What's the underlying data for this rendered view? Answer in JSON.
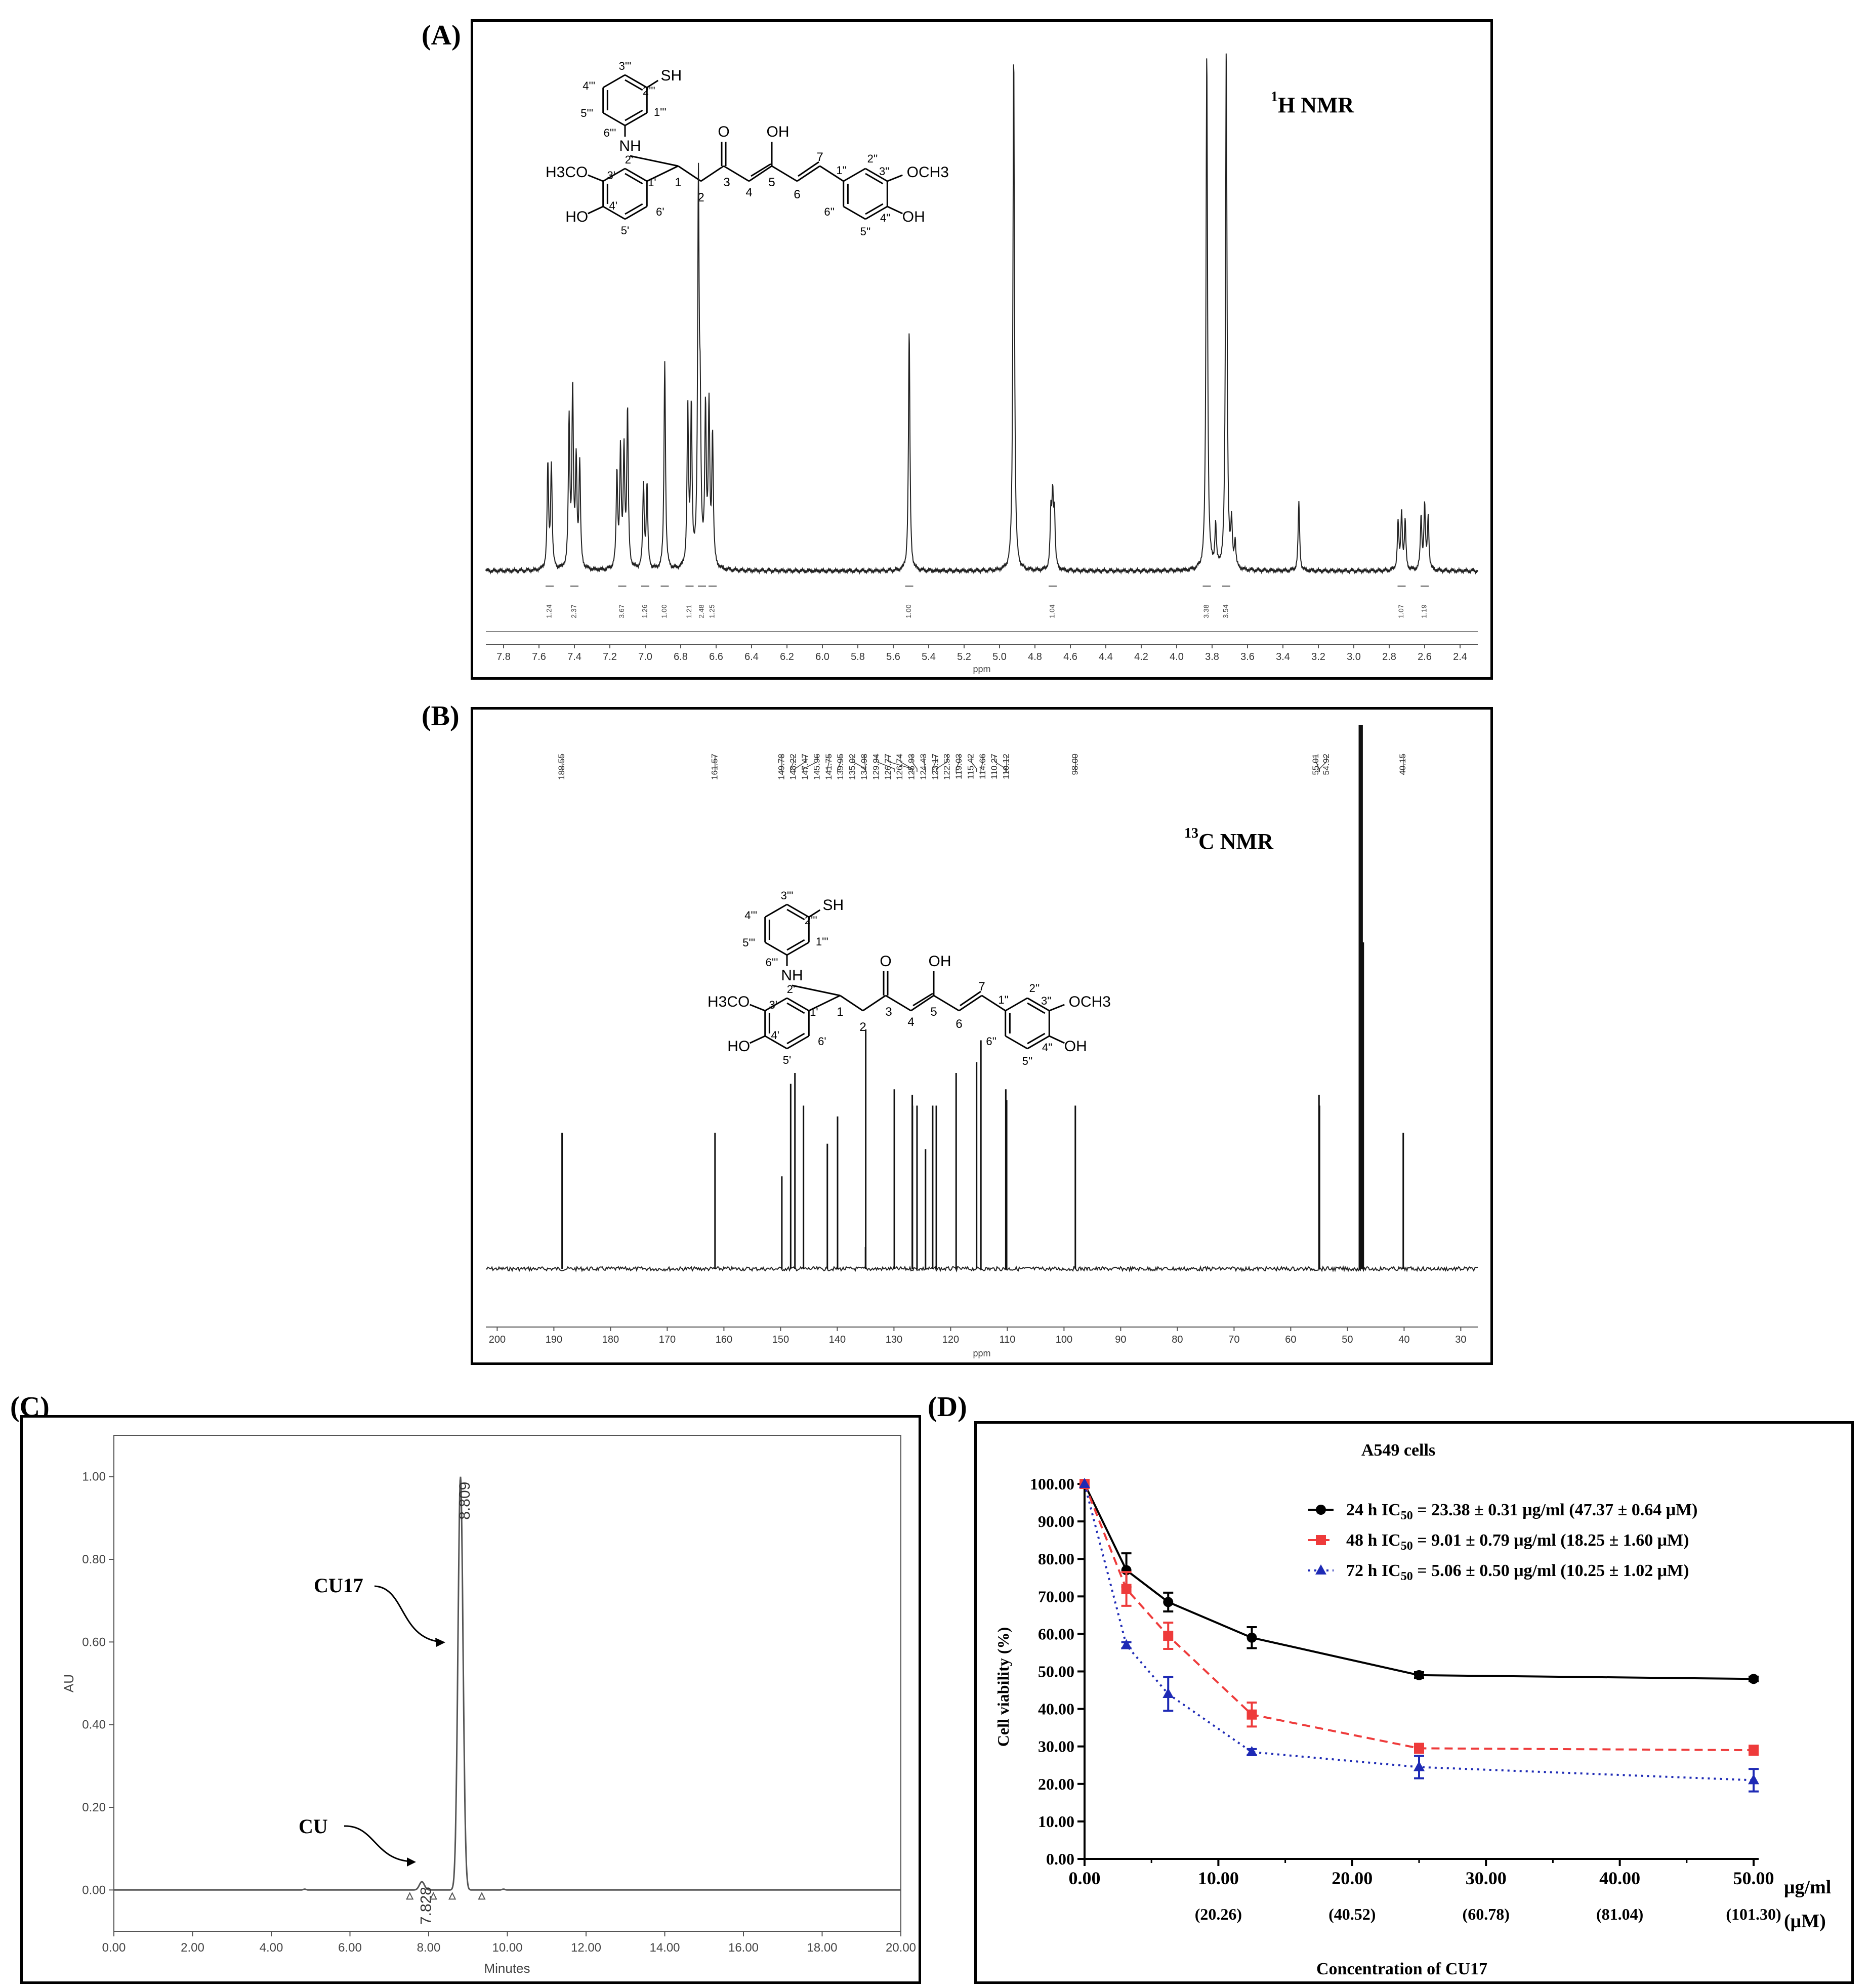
{
  "panels": {
    "A": {
      "letter": "(A)"
    },
    "B": {
      "letter": "(B)"
    },
    "C": {
      "letter": "(C)"
    },
    "D": {
      "letter": "(D)"
    }
  },
  "structure_labels": {
    "sh": "SH",
    "nh": "NH",
    "o": "O",
    "oh_enol": "OH",
    "h3co": "H3CO",
    "och3": "OCH3",
    "ho_left": "HO",
    "oh_right": "OH",
    "c1": "1",
    "c2": "2",
    "c3": "3",
    "c4": "4",
    "c5": "5",
    "c6": "6",
    "c7": "7",
    "c1p": "1'",
    "c2p": "2'",
    "c3p": "3'",
    "c4p": "4'",
    "c5p": "5'",
    "c6p": "6'",
    "c1pp": "1''",
    "c2pp": "2''",
    "c3pp": "3''",
    "c4pp": "4''",
    "c5pp": "5''",
    "c6pp": "6''",
    "c1ppp": "1'''",
    "c2ppp": "2'''",
    "c3ppp": "3'''",
    "c4ppp": "4'''",
    "c5ppp": "5'''",
    "c6ppp": "6'''"
  },
  "chart_data": [
    {
      "id": "A",
      "type": "line",
      "subtype": "1H NMR spectrum",
      "title_sup": "1",
      "title": "H NMR",
      "xlabel": "ppm",
      "x_reversed": true,
      "xlim": [
        7.9,
        2.3
      ],
      "xticks": [
        "7.8",
        "7.6",
        "7.4",
        "7.2",
        "7.0",
        "6.8",
        "6.6",
        "6.4",
        "6.2",
        "6.0",
        "5.8",
        "5.6",
        "5.4",
        "5.2",
        "5.0",
        "4.8",
        "4.6",
        "4.4",
        "4.2",
        "4.0",
        "3.8",
        "3.6",
        "3.4",
        "3.2",
        "3.0",
        "2.8",
        "2.6",
        "2.4"
      ],
      "peaks": [
        {
          "ppm": 7.55,
          "h": 0.2
        },
        {
          "ppm": 7.53,
          "h": 0.2
        },
        {
          "ppm": 7.43,
          "h": 0.28
        },
        {
          "ppm": 7.41,
          "h": 0.34
        },
        {
          "ppm": 7.39,
          "h": 0.2
        },
        {
          "ppm": 7.37,
          "h": 0.2
        },
        {
          "ppm": 7.16,
          "h": 0.18
        },
        {
          "ppm": 7.14,
          "h": 0.22
        },
        {
          "ppm": 7.12,
          "h": 0.22
        },
        {
          "ppm": 7.1,
          "h": 0.3
        },
        {
          "ppm": 7.01,
          "h": 0.16
        },
        {
          "ppm": 6.99,
          "h": 0.16
        },
        {
          "ppm": 6.89,
          "h": 0.4
        },
        {
          "ppm": 6.76,
          "h": 0.3
        },
        {
          "ppm": 6.74,
          "h": 0.3
        },
        {
          "ppm": 6.7,
          "h": 0.72
        },
        {
          "ppm": 6.69,
          "h": 0.25
        },
        {
          "ppm": 6.66,
          "h": 0.3
        },
        {
          "ppm": 6.64,
          "h": 0.3
        },
        {
          "ppm": 6.62,
          "h": 0.25
        },
        {
          "ppm": 5.51,
          "h": 0.46
        },
        {
          "ppm": 4.92,
          "h": 1.0
        },
        {
          "ppm": 4.71,
          "h": 0.1
        },
        {
          "ppm": 4.7,
          "h": 0.13
        },
        {
          "ppm": 4.69,
          "h": 0.1
        },
        {
          "ppm": 3.83,
          "h": 1.0
        },
        {
          "ppm": 3.78,
          "h": 0.08
        },
        {
          "ppm": 3.72,
          "h": 1.0
        },
        {
          "ppm": 3.69,
          "h": 0.08
        },
        {
          "ppm": 3.67,
          "h": 0.05
        },
        {
          "ppm": 3.31,
          "h": 0.13
        },
        {
          "ppm": 2.75,
          "h": 0.09
        },
        {
          "ppm": 2.73,
          "h": 0.11
        },
        {
          "ppm": 2.71,
          "h": 0.09
        },
        {
          "ppm": 2.62,
          "h": 0.1
        },
        {
          "ppm": 2.6,
          "h": 0.12
        },
        {
          "ppm": 2.58,
          "h": 0.1
        }
      ],
      "integrals": [
        {
          "ppm": 7.54,
          "label": "1.24"
        },
        {
          "ppm": 7.4,
          "label": "2.37"
        },
        {
          "ppm": 7.13,
          "label": "3.67"
        },
        {
          "ppm": 7.0,
          "label": "1.26"
        },
        {
          "ppm": 6.89,
          "label": "1.00"
        },
        {
          "ppm": 6.75,
          "label": "1.21"
        },
        {
          "ppm": 6.68,
          "label": "2.48"
        },
        {
          "ppm": 6.62,
          "label": "1.25"
        },
        {
          "ppm": 5.51,
          "label": "1.00"
        },
        {
          "ppm": 4.7,
          "label": "1.04"
        },
        {
          "ppm": 3.83,
          "label": "3.38"
        },
        {
          "ppm": 3.72,
          "label": "3.54"
        },
        {
          "ppm": 2.73,
          "label": "1.07"
        },
        {
          "ppm": 2.6,
          "label": "1.19"
        }
      ]
    },
    {
      "id": "B",
      "type": "line",
      "subtype": "13C NMR spectrum",
      "title_sup": "13",
      "title": "C NMR",
      "xlabel": "ppm",
      "x_reversed": true,
      "xlim": [
        202,
        27
      ],
      "xticks": [
        "200",
        "190",
        "180",
        "170",
        "160",
        "150",
        "140",
        "130",
        "120",
        "110",
        "100",
        "90",
        "80",
        "70",
        "60",
        "50",
        "40",
        "30"
      ],
      "peaks": [
        {
          "ppm": 188.55,
          "h": 0.25
        },
        {
          "ppm": 161.57,
          "h": 0.25
        },
        {
          "ppm": 149.78,
          "h": 0.17
        },
        {
          "ppm": 148.22,
          "h": 0.34
        },
        {
          "ppm": 147.47,
          "h": 0.36
        },
        {
          "ppm": 145.96,
          "h": 0.3
        },
        {
          "ppm": 141.75,
          "h": 0.23
        },
        {
          "ppm": 139.95,
          "h": 0.28
        },
        {
          "ppm": 135.02,
          "h": 0.04
        },
        {
          "ppm": 134.98,
          "h": 0.44
        },
        {
          "ppm": 129.94,
          "h": 0.33
        },
        {
          "ppm": 126.77,
          "h": 0.32
        },
        {
          "ppm": 126.74,
          "h": 0.3
        },
        {
          "ppm": 125.93,
          "h": 0.3
        },
        {
          "ppm": 124.43,
          "h": 0.22
        },
        {
          "ppm": 123.17,
          "h": 0.3
        },
        {
          "ppm": 122.53,
          "h": 0.3
        },
        {
          "ppm": 119.03,
          "h": 0.36
        },
        {
          "ppm": 115.42,
          "h": 0.38
        },
        {
          "ppm": 114.66,
          "h": 0.42
        },
        {
          "ppm": 110.27,
          "h": 0.33
        },
        {
          "ppm": 110.12,
          "h": 0.31
        },
        {
          "ppm": 98.0,
          "h": 0.3
        },
        {
          "ppm": 55.01,
          "h": 0.32
        },
        {
          "ppm": 54.92,
          "h": 0.3
        },
        {
          "ppm": 47.8,
          "h": 1.0
        },
        {
          "ppm": 47.5,
          "h": 1.0
        },
        {
          "ppm": 47.2,
          "h": 0.6
        },
        {
          "ppm": 40.15,
          "h": 0.25
        }
      ],
      "peak_labels": [
        {
          "ppm": 188.55,
          "label": "188.55"
        },
        {
          "ppm": 161.57,
          "label": "161.57"
        },
        {
          "ppm": 149.78,
          "label": "149.78"
        },
        {
          "ppm": 148.22,
          "label": "148.22"
        },
        {
          "ppm": 147.47,
          "label": "147.47"
        },
        {
          "ppm": 145.96,
          "label": "145.96"
        },
        {
          "ppm": 141.75,
          "label": "141.75"
        },
        {
          "ppm": 139.95,
          "label": "139.95"
        },
        {
          "ppm": 135.02,
          "label": "135.02"
        },
        {
          "ppm": 134.98,
          "label": "134.98"
        },
        {
          "ppm": 129.94,
          "label": "129.94"
        },
        {
          "ppm": 126.77,
          "label": "126.77"
        },
        {
          "ppm": 126.74,
          "label": "126.74"
        },
        {
          "ppm": 125.93,
          "label": "125.93"
        },
        {
          "ppm": 124.43,
          "label": "124.43"
        },
        {
          "ppm": 123.17,
          "label": "123.17"
        },
        {
          "ppm": 122.53,
          "label": "122.53"
        },
        {
          "ppm": 119.03,
          "label": "119.03"
        },
        {
          "ppm": 115.42,
          "label": "115.42"
        },
        {
          "ppm": 114.66,
          "label": "114.66"
        },
        {
          "ppm": 110.27,
          "label": "110.27"
        },
        {
          "ppm": 110.12,
          "label": "110.12"
        },
        {
          "ppm": 98.0,
          "label": "98.00"
        },
        {
          "ppm": 55.01,
          "label": "55.01"
        },
        {
          "ppm": 54.92,
          "label": "54.92"
        },
        {
          "ppm": 40.15,
          "label": "40.15"
        }
      ]
    },
    {
      "id": "C",
      "type": "line",
      "subtype": "HPLC chromatogram",
      "xlabel": "Minutes",
      "ylabel": "AU",
      "xlim": [
        0,
        20
      ],
      "ylim": [
        -0.1,
        1.1
      ],
      "xticks": [
        "0.00",
        "2.00",
        "4.00",
        "6.00",
        "8.00",
        "10.00",
        "12.00",
        "14.00",
        "16.00",
        "18.00",
        "20.00"
      ],
      "yticks": [
        "0.00",
        "0.20",
        "0.40",
        "0.60",
        "0.80",
        "1.00"
      ],
      "peaks": [
        {
          "rt": 7.828,
          "au": 0.02,
          "width": 0.09,
          "label": "7.828"
        },
        {
          "rt": 8.809,
          "au": 1.0,
          "width": 0.09,
          "label": "8.809"
        }
      ],
      "markers": [
        7.52,
        8.12,
        8.6,
        9.35
      ],
      "annotations": [
        {
          "label": "CU17",
          "target_rt": 8.809
        },
        {
          "label": "CU",
          "target_rt": 7.828
        }
      ]
    },
    {
      "id": "D",
      "type": "line",
      "title": "A549 cells",
      "xlabel": "Concentration of CU17",
      "ylabel": "Cell viability (%)",
      "xlim": [
        0,
        50
      ],
      "ylim": [
        0,
        100
      ],
      "xticks": [
        "0.00",
        "10.00",
        "20.00",
        "30.00",
        "40.00",
        "50.00"
      ],
      "xtick_secondary": [
        "(20.26)",
        "(40.52)",
        "(60.78)",
        "(81.04)",
        "(101.30)"
      ],
      "yticks": [
        "0.00",
        "10.00",
        "20.00",
        "30.00",
        "40.00",
        "50.00",
        "60.00",
        "70.00",
        "80.00",
        "90.00",
        "100.00"
      ],
      "x_unit_top": "μg/ml",
      "x_unit_bottom": "(μM)",
      "series": [
        {
          "name": "24 h",
          "ic_label": "IC",
          "ic_sub": "50",
          "ic_value": " = 23.38 ± 0.31 μg/ml (47.37 ± 0.64 μM)",
          "color": "#000000",
          "marker": "circle",
          "dash": "",
          "x": [
            0,
            3.125,
            6.25,
            12.5,
            25,
            50
          ],
          "y": [
            100,
            77,
            68.5,
            59,
            49,
            48
          ],
          "err": [
            0,
            4.5,
            2.5,
            2.8,
            0.8,
            0.6
          ]
        },
        {
          "name": "48 h",
          "ic_label": "IC",
          "ic_sub": "50",
          "ic_value": " = 9.01 ± 0.79 μg/ml (18.25 ± 1.60 μM)",
          "color": "#ee3b3b",
          "marker": "square",
          "dash": "16,10",
          "x": [
            0,
            3.125,
            6.25,
            12.5,
            25,
            50
          ],
          "y": [
            100,
            72,
            59.5,
            38.5,
            29.5,
            29
          ],
          "err": [
            0,
            4.5,
            3.5,
            3.2,
            1.2,
            1.2
          ]
        },
        {
          "name": "72 h",
          "ic_label": "IC",
          "ic_sub": "50",
          "ic_value": " = 5.06 ± 0.50 μg/ml (10.25 ± 1.02 μM)",
          "color": "#1e2ab5",
          "marker": "triangle",
          "dash": "4,8",
          "x": [
            0,
            3.125,
            6.25,
            12.5,
            25,
            50
          ],
          "y": [
            100,
            57,
            44,
            28.5,
            24.5,
            21
          ],
          "err": [
            0,
            0.8,
            4.5,
            0.8,
            3,
            3
          ]
        }
      ]
    }
  ]
}
